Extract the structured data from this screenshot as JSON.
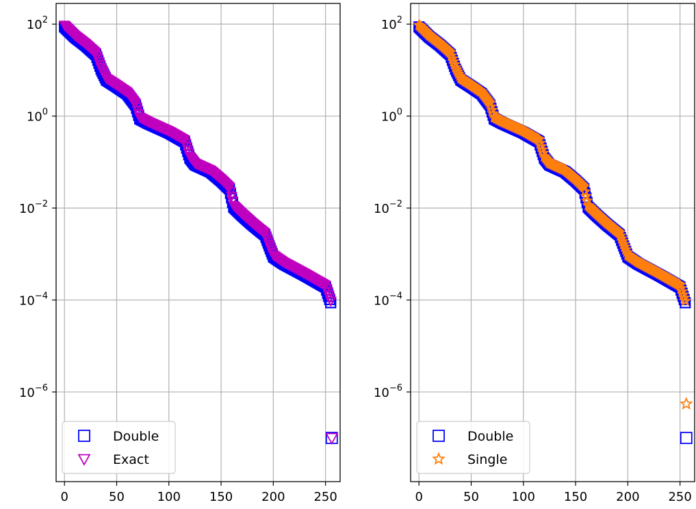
{
  "chart_data": [
    {
      "type": "scatter",
      "y_scale": "log",
      "xlim": [
        -8,
        264
      ],
      "ylim_exponent": [
        -7.95,
        2.45
      ],
      "grid": true,
      "legend_position": "lower-left",
      "x_ticks": [
        "0",
        "50",
        "100",
        "150",
        "200",
        "250"
      ],
      "x_tick_values": [
        0,
        50,
        100,
        150,
        200,
        250
      ],
      "y_ticks": [
        {
          "base": "10",
          "exp": "2",
          "value": 100
        },
        {
          "base": "10",
          "exp": "0",
          "value": 1
        },
        {
          "base": "10",
          "exp": "−2",
          "value": 0.01
        },
        {
          "base": "10",
          "exp": "−4",
          "value": 0.0001
        },
        {
          "base": "10",
          "exp": "−6",
          "value": 1e-06
        }
      ],
      "curve": {
        "x": [
          0,
          10,
          20,
          30,
          35,
          40,
          50,
          60,
          68,
          72,
          80,
          100,
          115,
          120,
          125,
          140,
          150,
          158,
          162,
          170,
          180,
          192,
          197,
          200,
          210,
          230,
          250,
          255
        ],
        "y": [
          100,
          60,
          40,
          25,
          12,
          7,
          5,
          3.5,
          2,
          1,
          0.8,
          0.5,
          0.32,
          0.14,
          0.1,
          0.07,
          0.045,
          0.03,
          0.012,
          0.008,
          0.005,
          0.003,
          0.0015,
          0.001,
          0.0007,
          0.0004,
          0.00022,
          0.0001
        ]
      },
      "series": [
        {
          "name": "Double",
          "marker": "square",
          "color": "#0000ff",
          "outlier": {
            "x": 256,
            "y": 1e-07
          }
        },
        {
          "name": "Exact",
          "marker": "triangle-down",
          "color": "#bf00bf",
          "outlier": {
            "x": 256,
            "y": 1e-07
          }
        }
      ]
    },
    {
      "type": "scatter",
      "y_scale": "log",
      "xlim": [
        -8,
        264
      ],
      "ylim_exponent": [
        -7.95,
        2.45
      ],
      "grid": true,
      "legend_position": "lower-left",
      "x_ticks": [
        "0",
        "50",
        "100",
        "150",
        "200",
        "250"
      ],
      "x_tick_values": [
        0,
        50,
        100,
        150,
        200,
        250
      ],
      "y_ticks": [
        {
          "base": "10",
          "exp": "2",
          "value": 100
        },
        {
          "base": "10",
          "exp": "0",
          "value": 1
        },
        {
          "base": "10",
          "exp": "−2",
          "value": 0.01
        },
        {
          "base": "10",
          "exp": "−4",
          "value": 0.0001
        },
        {
          "base": "10",
          "exp": "−6",
          "value": 1e-06
        }
      ],
      "curve": {
        "x": [
          0,
          10,
          20,
          30,
          35,
          40,
          50,
          60,
          68,
          72,
          80,
          100,
          115,
          120,
          125,
          140,
          150,
          158,
          162,
          170,
          180,
          192,
          197,
          200,
          210,
          230,
          250,
          255
        ],
        "y": [
          100,
          60,
          40,
          25,
          12,
          7,
          5,
          3.5,
          2,
          1,
          0.8,
          0.5,
          0.32,
          0.14,
          0.1,
          0.07,
          0.045,
          0.03,
          0.012,
          0.008,
          0.005,
          0.003,
          0.0015,
          0.001,
          0.0007,
          0.0004,
          0.00022,
          0.0001
        ]
      },
      "series": [
        {
          "name": "Double",
          "marker": "square",
          "color": "#0000ff",
          "outlier": {
            "x": 256,
            "y": 1e-07
          }
        },
        {
          "name": "Single",
          "marker": "star",
          "color": "#ff7f0e",
          "outlier": {
            "x": 256,
            "y": 5.5e-07
          }
        }
      ]
    }
  ]
}
